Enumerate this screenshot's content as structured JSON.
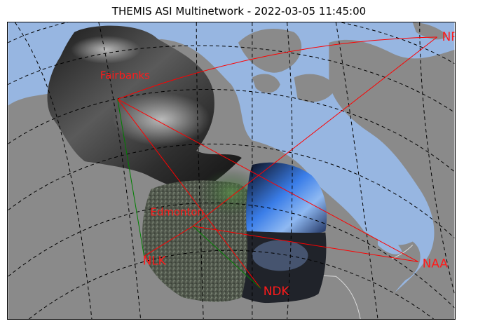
{
  "title": "THEMIS ASI Multinetwork - 2022-03-05 11:45:00",
  "colors": {
    "ocean": "#97b6e1",
    "land": "#8a8a8a",
    "graticule": "#000000",
    "link_red": "#ff0000",
    "link_green": "#008000",
    "label": "#ff1a1a"
  },
  "stations": {
    "fairbanks": "Fairbanks",
    "edmonton": "Edmonton",
    "nrk": "NRK",
    "naa": "NAA",
    "nlk": "NLK",
    "ndk": "NDK"
  }
}
